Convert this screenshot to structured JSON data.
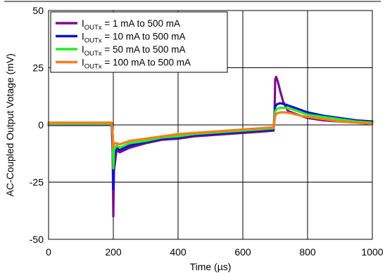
{
  "chart_data": {
    "type": "line",
    "title": "",
    "xlabel": "Time (µs)",
    "ylabel": "AC-Coupled Output Votage (mV)",
    "xlim": [
      0,
      1000
    ],
    "ylim": [
      -50,
      50
    ],
    "x_ticks": [
      0,
      200,
      400,
      600,
      800,
      1000
    ],
    "y_ticks": [
      -50,
      -25,
      0,
      25,
      50
    ],
    "x_tick_labels": [
      "0",
      "200",
      "400",
      "600",
      "800",
      "1000"
    ],
    "y_tick_labels": [
      "-50",
      "-25",
      "0",
      "25",
      "50"
    ],
    "grid": true,
    "legend_position": "top-left",
    "legend_prefix": "I",
    "legend_subscript": "OUTx",
    "series": [
      {
        "name": "I_OUTx = 1 mA to 500 mA",
        "legend_suffix": " = 1 mA to 500 mA",
        "color": "#7b0f8c",
        "x": [
          0,
          100,
          195,
          198,
          200,
          202,
          210,
          220,
          250,
          300,
          350,
          400,
          450,
          500,
          550,
          600,
          650,
          695,
          698,
          700,
          703,
          708,
          715,
          725,
          740,
          760,
          780,
          800,
          850,
          900,
          950,
          1000
        ],
        "y": [
          0,
          0,
          0,
          -12,
          -40,
          -20,
          -11,
          -12,
          -10,
          -8,
          -6.5,
          -6,
          -5,
          -4.5,
          -4,
          -3.5,
          -3,
          -2.5,
          5,
          20,
          21,
          19,
          15,
          10,
          6,
          5,
          4,
          3,
          2,
          1.5,
          1,
          0.5
        ]
      },
      {
        "name": "I_OUTx = 10 mA to 500 mA",
        "legend_suffix": " = 10 mA to 500 mA",
        "color": "#1010d0",
        "x": [
          0,
          100,
          195,
          198,
          200,
          202,
          210,
          220,
          250,
          300,
          350,
          400,
          450,
          500,
          550,
          600,
          650,
          695,
          698,
          700,
          705,
          715,
          730,
          750,
          780,
          800,
          850,
          900,
          950,
          1000
        ],
        "y": [
          0.5,
          0.5,
          0.5,
          -8,
          -28,
          -14,
          -10,
          -11,
          -9,
          -7.5,
          -6,
          -5.5,
          -4.5,
          -4,
          -3.5,
          -3,
          -2.5,
          -2,
          4,
          8,
          9,
          9.5,
          9,
          8,
          6.5,
          5.5,
          4,
          3,
          2,
          1.5
        ]
      },
      {
        "name": "I_OUTx = 50 mA to 500 mA",
        "legend_suffix": " = 50 mA to 500 mA",
        "color": "#22ee22",
        "x": [
          0,
          100,
          195,
          198,
          200,
          202,
          210,
          220,
          250,
          300,
          350,
          400,
          450,
          500,
          550,
          600,
          650,
          695,
          698,
          700,
          705,
          715,
          730,
          750,
          780,
          800,
          850,
          900,
          950,
          1000
        ],
        "y": [
          0.5,
          0.5,
          0.5,
          -5,
          -19,
          -11,
          -9,
          -10,
          -8,
          -7,
          -5.5,
          -5,
          -4,
          -3.5,
          -3,
          -2.5,
          -2,
          -1.5,
          3,
          6,
          7,
          7.5,
          7.5,
          7,
          5.5,
          4.5,
          3.5,
          2.5,
          1.5,
          1
        ]
      },
      {
        "name": "I_OUTx = 100 mA to 500 mA",
        "legend_suffix": " = 100 mA to 500 mA",
        "color": "#ff7a1a",
        "x": [
          0,
          100,
          195,
          198,
          200,
          202,
          210,
          220,
          250,
          300,
          350,
          400,
          450,
          500,
          550,
          600,
          650,
          695,
          698,
          700,
          705,
          715,
          730,
          750,
          780,
          800,
          850,
          900,
          950,
          1000
        ],
        "y": [
          1,
          1,
          1,
          -4,
          -10,
          -8,
          -8,
          -8.5,
          -7,
          -6,
          -5,
          -4,
          -3.5,
          -3,
          -2.5,
          -2,
          -1.5,
          -1,
          2,
          4,
          5,
          5.5,
          5.5,
          5,
          4,
          3.5,
          2.5,
          1.5,
          1,
          0.5
        ]
      }
    ]
  }
}
